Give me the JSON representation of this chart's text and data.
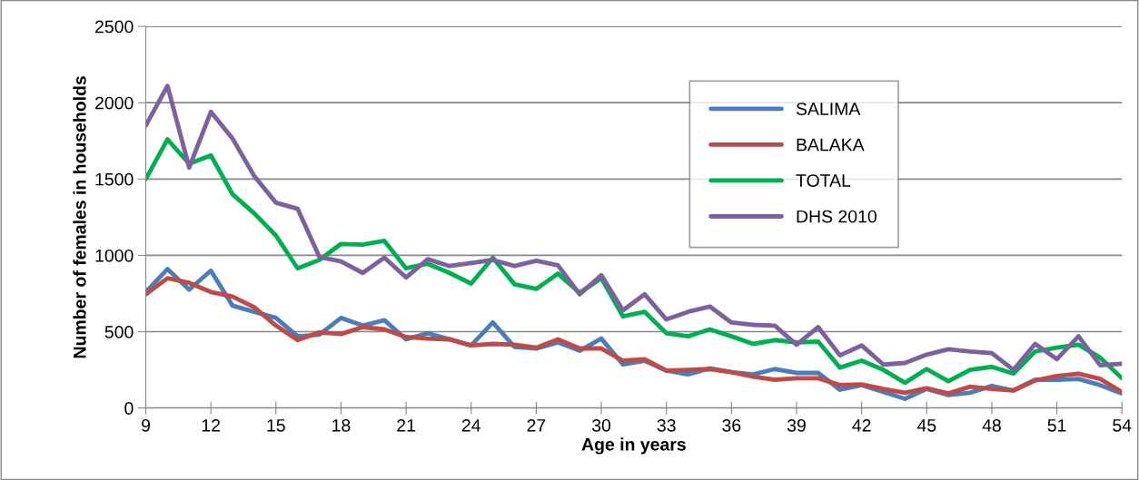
{
  "chart_data": {
    "type": "line",
    "xlabel": "Age in years",
    "ylabel": "Number of females in households",
    "x": [
      9,
      10,
      11,
      12,
      13,
      14,
      15,
      16,
      17,
      18,
      19,
      20,
      21,
      22,
      23,
      24,
      25,
      26,
      27,
      28,
      29,
      30,
      31,
      32,
      33,
      34,
      35,
      36,
      37,
      38,
      39,
      40,
      41,
      42,
      43,
      44,
      45,
      46,
      47,
      48,
      49,
      50,
      51,
      52,
      53,
      54
    ],
    "series": [
      {
        "name": "SALIMA",
        "color": "#4a7ebb",
        "values": [
          760,
          910,
          775,
          900,
          670,
          630,
          590,
          470,
          480,
          590,
          540,
          575,
          450,
          490,
          450,
          410,
          560,
          400,
          390,
          430,
          375,
          455,
          285,
          310,
          245,
          220,
          260,
          235,
          220,
          255,
          230,
          230,
          120,
          150,
          105,
          60,
          125,
          85,
          100,
          145,
          115,
          185,
          185,
          190,
          150,
          95
        ]
      },
      {
        "name": "BALAKA",
        "color": "#be4b48",
        "values": [
          745,
          850,
          820,
          760,
          730,
          660,
          540,
          445,
          495,
          485,
          530,
          515,
          465,
          455,
          450,
          410,
          420,
          415,
          395,
          450,
          390,
          390,
          310,
          320,
          245,
          250,
          255,
          235,
          205,
          185,
          195,
          195,
          150,
          155,
          125,
          100,
          130,
          95,
          140,
          125,
          115,
          180,
          210,
          225,
          190,
          105
        ]
      },
      {
        "name": "TOTAL",
        "color": "#00b050",
        "values": [
          1500,
          1760,
          1600,
          1655,
          1400,
          1275,
          1130,
          915,
          970,
          1075,
          1070,
          1095,
          915,
          945,
          885,
          815,
          985,
          810,
          780,
          880,
          755,
          850,
          600,
          630,
          490,
          470,
          515,
          470,
          420,
          445,
          430,
          435,
          265,
          310,
          250,
          165,
          255,
          175,
          250,
          270,
          225,
          370,
          395,
          415,
          330,
          195
        ]
      },
      {
        "name": "DHS 2010",
        "color": "#7d60a0",
        "values": [
          1850,
          2110,
          1575,
          1940,
          1765,
          1520,
          1345,
          1305,
          990,
          960,
          885,
          985,
          855,
          975,
          930,
          950,
          970,
          930,
          965,
          935,
          745,
          870,
          640,
          745,
          580,
          630,
          665,
          560,
          545,
          540,
          415,
          530,
          345,
          410,
          285,
          295,
          350,
          385,
          370,
          360,
          250,
          420,
          320,
          470,
          280,
          290
        ]
      }
    ],
    "xlim": [
      9,
      54
    ],
    "xticks": [
      9,
      12,
      15,
      18,
      21,
      24,
      27,
      30,
      33,
      36,
      39,
      42,
      45,
      48,
      51,
      54
    ],
    "ylim": [
      0,
      2500
    ],
    "yticks": [
      0,
      500,
      1000,
      1500,
      2000,
      2500
    ],
    "grid": "y",
    "legend": "top right",
    "marker": "none",
    "line_style": "solid"
  }
}
